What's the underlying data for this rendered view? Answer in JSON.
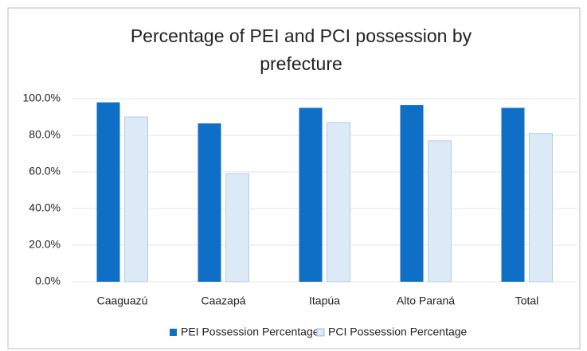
{
  "chart_data": {
    "type": "bar",
    "title": "Percentage of PEI and PCI possession by prefecture",
    "categories": [
      "Caaguazú",
      "Caazapá",
      "Itapúa",
      "Alto Paraná",
      "Total"
    ],
    "series": [
      {
        "name": "PEI Possession Percentage",
        "color": "#0f6fc6",
        "values": [
          98,
          86.5,
          95,
          96.5,
          95
        ]
      },
      {
        "name": "PCI Possession Percentage",
        "color": "#dce9f6",
        "values": [
          90,
          59,
          87,
          77,
          81
        ]
      }
    ],
    "ylim": [
      0,
      100
    ],
    "yticks": [
      {
        "value": 0,
        "label": "0.0%"
      },
      {
        "value": 20,
        "label": "20.0%"
      },
      {
        "value": 40,
        "label": "40.0%"
      },
      {
        "value": 60,
        "label": "60.0%"
      },
      {
        "value": 80,
        "label": "80.0%"
      },
      {
        "value": 100,
        "label": "100.0%"
      }
    ],
    "grid": true,
    "legend": "bottom"
  }
}
